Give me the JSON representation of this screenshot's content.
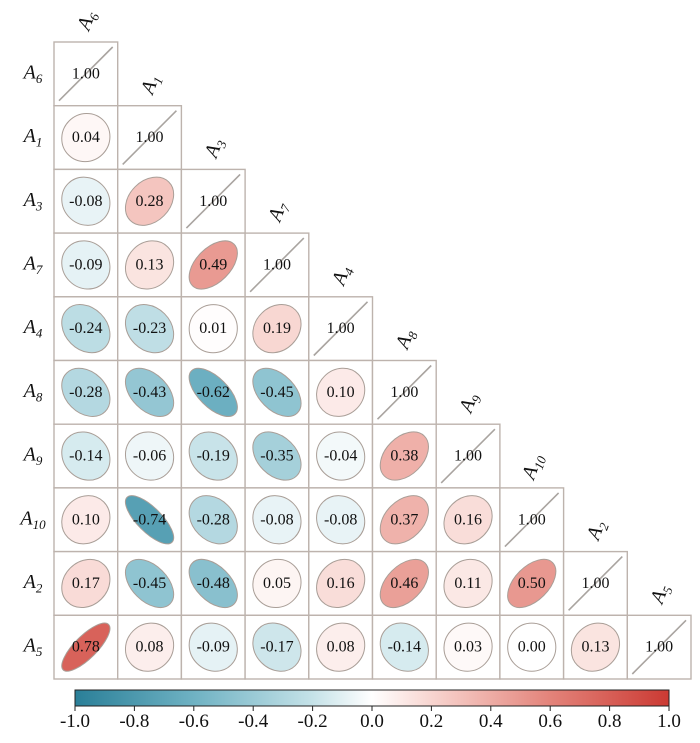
{
  "chart_data": {
    "type": "heatmap",
    "subtype": "lower-triangular correlation matrix (ellipse glyphs)",
    "title": "",
    "variables": [
      {
        "base": "A",
        "sub": "6"
      },
      {
        "base": "A",
        "sub": "1"
      },
      {
        "base": "A",
        "sub": "3"
      },
      {
        "base": "A",
        "sub": "7"
      },
      {
        "base": "A",
        "sub": "4"
      },
      {
        "base": "A",
        "sub": "8"
      },
      {
        "base": "A",
        "sub": "9"
      },
      {
        "base": "A",
        "sub": "10"
      },
      {
        "base": "A",
        "sub": "2"
      },
      {
        "base": "A",
        "sub": "5"
      }
    ],
    "matrix": [
      [
        1.0
      ],
      [
        0.04,
        1.0
      ],
      [
        -0.08,
        0.28,
        1.0
      ],
      [
        -0.09,
        0.13,
        0.49,
        1.0
      ],
      [
        -0.24,
        -0.23,
        0.01,
        0.19,
        1.0
      ],
      [
        -0.28,
        -0.43,
        -0.62,
        -0.45,
        0.1,
        1.0
      ],
      [
        -0.14,
        -0.06,
        -0.19,
        -0.35,
        -0.04,
        0.38,
        1.0
      ],
      [
        0.1,
        -0.74,
        -0.28,
        -0.08,
        -0.08,
        0.37,
        0.16,
        1.0
      ],
      [
        0.17,
        -0.45,
        -0.48,
        0.05,
        0.16,
        0.46,
        0.11,
        0.5,
        1.0
      ],
      [
        0.78,
        0.08,
        -0.09,
        -0.17,
        0.08,
        -0.14,
        0.03,
        0.0,
        0.13,
        1.0
      ]
    ],
    "value_labels": [
      [
        "1.00"
      ],
      [
        "0.04",
        "1.00"
      ],
      [
        "-0.08",
        "0.28",
        "1.00"
      ],
      [
        "-0.09",
        "0.13",
        "0.49",
        "1.00"
      ],
      [
        "-0.24",
        "-0.23",
        "0.01",
        "0.19",
        "1.00"
      ],
      [
        "-0.28",
        "-0.43",
        "-0.62",
        "-0.45",
        "0.10",
        "1.00"
      ],
      [
        "-0.14",
        "-0.06",
        "-0.19",
        "-0.35",
        "-0.04",
        "0.38",
        "1.00"
      ],
      [
        "0.10",
        "-0.74",
        "-0.28",
        "-0.08",
        "-0.08",
        "0.37",
        "0.16",
        "1.00"
      ],
      [
        "0.17",
        "-0.45",
        "-0.48",
        "0.05",
        "0.16",
        "0.46",
        "0.11",
        "0.50",
        "1.00"
      ],
      [
        "0.78",
        "0.08",
        "-0.09",
        "-0.17",
        "0.08",
        "-0.14",
        "0.03",
        "0.00",
        "0.13",
        "1.00"
      ]
    ],
    "colorbar": {
      "range": [
        -1.0,
        1.0
      ],
      "ticks": [
        -1.0,
        -0.8,
        -0.6,
        -0.4,
        -0.2,
        0.0,
        0.2,
        0.4,
        0.6,
        0.8,
        1.0
      ],
      "tick_labels": [
        "-1.0",
        "-0.8",
        "-0.6",
        "-0.4",
        "-0.2",
        "0.0",
        "0.2",
        "0.4",
        "0.6",
        "0.8",
        "1.0"
      ],
      "placement": "bottom",
      "colors": {
        "negative": "#2a7f98",
        "zero": "#ffffff",
        "positive": "#cb3a33"
      }
    },
    "colors": {
      "cell_border": "#bdb3ad",
      "ellipse_border": "#a99e97",
      "diagonal_line": "#a9a4a0"
    }
  }
}
